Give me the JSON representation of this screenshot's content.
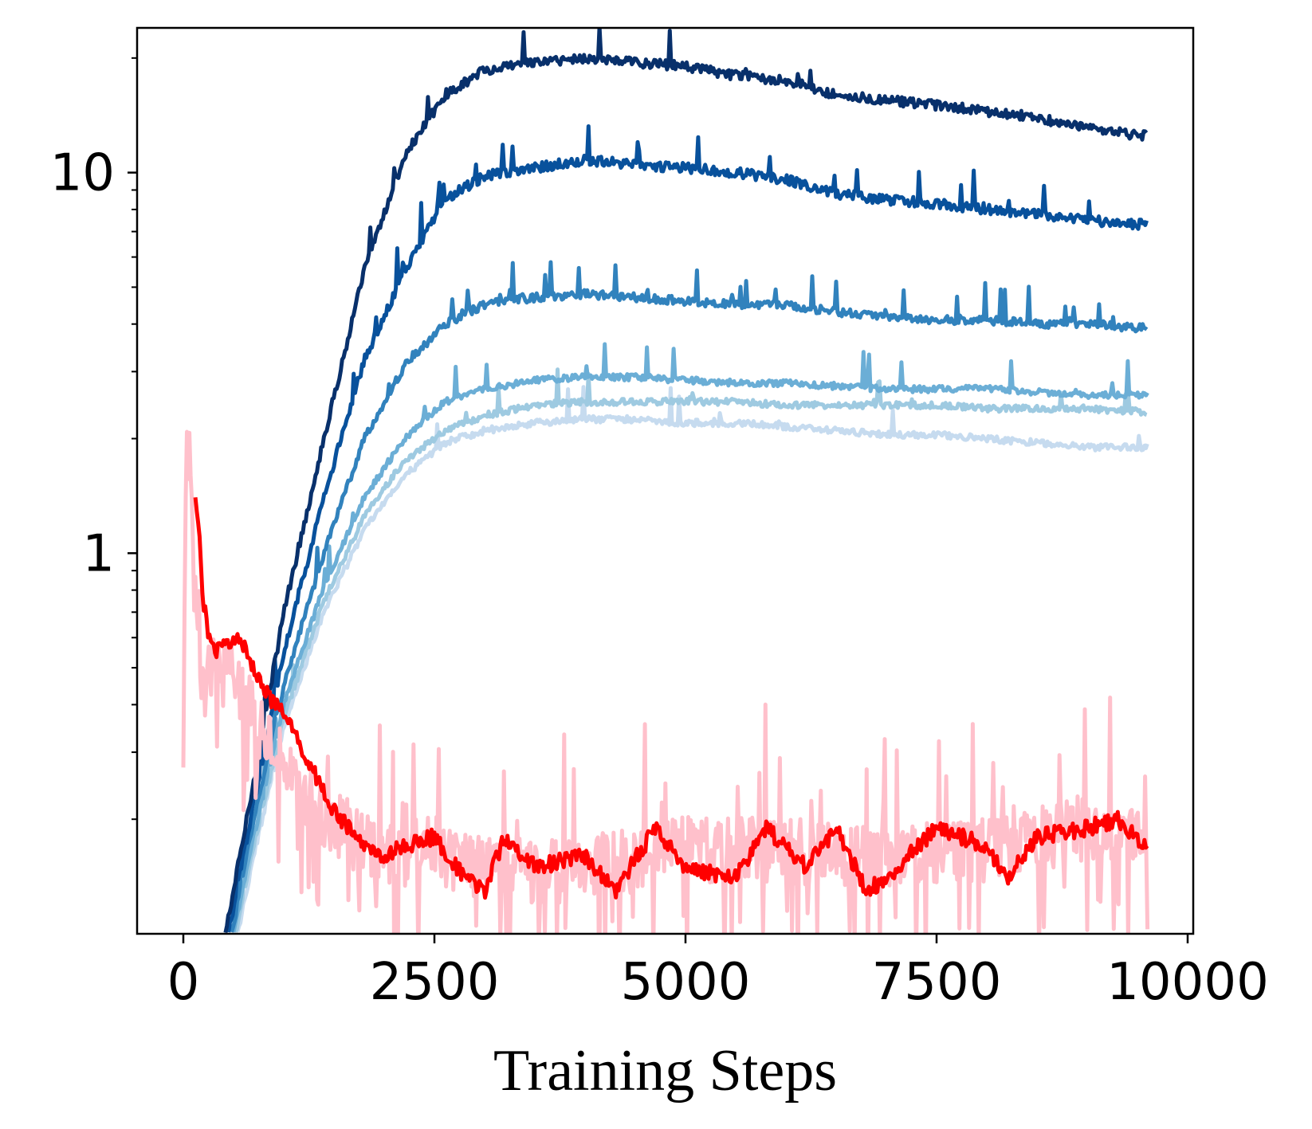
{
  "chart_data": {
    "type": "line",
    "title": "",
    "xlabel": "Training Steps",
    "ylabel": "",
    "yscale": "log",
    "xlim": [
      -450,
      10000
    ],
    "ylim": [
      0.1,
      24
    ],
    "xticks": [
      0,
      2500,
      5000,
      7500,
      10000
    ],
    "xtick_labels": [
      "0",
      "2500",
      "5000",
      "7500",
      "10000"
    ],
    "yticks": [
      1,
      10
    ],
    "ytick_labels": [
      "1",
      "10"
    ],
    "grid": false,
    "legend": "none",
    "series": [
      {
        "name": "blue-1",
        "color": "#08306b",
        "noise": 0.03,
        "spikes": 0.02,
        "x": [
          420,
          700,
          1000,
          1400,
          1800,
          2200,
          2600,
          3000,
          3500,
          4000,
          4500,
          5000,
          5500,
          6000,
          6500,
          7000,
          7500,
          8000,
          8500,
          9000,
          9600
        ],
        "y": [
          0.1,
          0.25,
          0.7,
          2.0,
          5.5,
          11,
          16,
          18.5,
          19.5,
          20,
          19.5,
          19,
          18,
          17.5,
          16,
          15.5,
          15,
          14.5,
          14,
          13,
          12.5
        ]
      },
      {
        "name": "blue-2",
        "color": "#08519c",
        "noise": 0.03,
        "spikes": 0.06,
        "x": [
          450,
          700,
          1000,
          1400,
          1800,
          2200,
          2600,
          3000,
          3500,
          4000,
          4500,
          5000,
          5500,
          6000,
          6500,
          7000,
          7500,
          8000,
          8500,
          9000,
          9600
        ],
        "y": [
          0.1,
          0.22,
          0.55,
          1.4,
          3.2,
          5.5,
          8.5,
          9.8,
          10.3,
          10.8,
          10.5,
          10.3,
          10,
          9.6,
          8.8,
          8.5,
          8.3,
          8,
          7.8,
          7.5,
          7.3
        ]
      },
      {
        "name": "blue-3",
        "color": "#3182bd",
        "noise": 0.025,
        "spikes": 0.06,
        "x": [
          480,
          700,
          1000,
          1400,
          1800,
          2200,
          2600,
          3000,
          3500,
          4000,
          4500,
          5000,
          5500,
          6000,
          6500,
          7000,
          7500,
          8000,
          8500,
          9000,
          9600
        ],
        "y": [
          0.1,
          0.2,
          0.45,
          1.0,
          2.0,
          3.1,
          4.0,
          4.5,
          4.7,
          4.8,
          4.7,
          4.6,
          4.5,
          4.5,
          4.3,
          4.2,
          4.1,
          4.1,
          4.0,
          4.0,
          3.9
        ]
      },
      {
        "name": "blue-4",
        "color": "#6baed6",
        "noise": 0.02,
        "spikes": 0.04,
        "x": [
          500,
          700,
          1000,
          1400,
          1800,
          2200,
          2600,
          3000,
          3500,
          4000,
          4500,
          5000,
          5500,
          6000,
          6500,
          7000,
          7500,
          8000,
          8500,
          9000,
          9600
        ],
        "y": [
          0.1,
          0.18,
          0.4,
          0.82,
          1.4,
          2.0,
          2.5,
          2.7,
          2.85,
          2.9,
          2.9,
          2.85,
          2.8,
          2.8,
          2.75,
          2.7,
          2.7,
          2.7,
          2.65,
          2.6,
          2.6
        ]
      },
      {
        "name": "blue-5",
        "color": "#9ecae1",
        "noise": 0.02,
        "spikes": 0.03,
        "x": [
          520,
          700,
          1000,
          1400,
          1800,
          2200,
          2600,
          3000,
          3500,
          4000,
          4500,
          5000,
          5500,
          6000,
          6500,
          7000,
          7500,
          8000,
          8500,
          9000,
          9600
        ],
        "y": [
          0.1,
          0.17,
          0.37,
          0.75,
          1.25,
          1.75,
          2.1,
          2.3,
          2.45,
          2.5,
          2.5,
          2.5,
          2.5,
          2.45,
          2.45,
          2.45,
          2.45,
          2.4,
          2.4,
          2.4,
          2.35
        ]
      },
      {
        "name": "blue-6",
        "color": "#c6dbef",
        "noise": 0.02,
        "spikes": 0.02,
        "x": [
          540,
          700,
          1000,
          1400,
          1800,
          2200,
          2600,
          3000,
          3500,
          4000,
          4500,
          5000,
          5500,
          6000,
          6500,
          7000,
          7500,
          8000,
          8500,
          9000,
          9600
        ],
        "y": [
          0.1,
          0.16,
          0.35,
          0.7,
          1.15,
          1.6,
          1.95,
          2.1,
          2.2,
          2.25,
          2.25,
          2.2,
          2.2,
          2.15,
          2.1,
          2.05,
          2.05,
          2.0,
          1.95,
          1.9,
          1.9
        ]
      },
      {
        "name": "pink-raw",
        "color": "#ffc0cb",
        "noise": 0.2,
        "spikes": 0.06,
        "x": [
          0,
          30,
          60,
          100,
          150,
          200,
          300,
          400,
          500,
          600,
          700,
          800,
          1000,
          1200,
          1500,
          2000,
          2500,
          3000,
          4000,
          5000,
          6000,
          7000,
          8000,
          9000,
          9600
        ],
        "y": [
          0.4,
          2.2,
          1.8,
          0.9,
          0.55,
          0.45,
          0.5,
          0.48,
          0.5,
          0.42,
          0.38,
          0.34,
          0.28,
          0.24,
          0.2,
          0.16,
          0.17,
          0.15,
          0.15,
          0.17,
          0.17,
          0.16,
          0.17,
          0.19,
          0.18
        ]
      },
      {
        "name": "red-smoothed",
        "color": "#ff0000",
        "noise": 0.05,
        "spikes": 0,
        "x": [
          120,
          150,
          200,
          250,
          300,
          350,
          400,
          500,
          600,
          700,
          800,
          900,
          1000,
          1200,
          1500,
          1800,
          2000,
          2200,
          2500,
          2800,
          3000,
          3200,
          3500,
          4000,
          4300,
          4700,
          5000,
          5500,
          5800,
          6200,
          6500,
          6800,
          7000,
          7500,
          8000,
          8200,
          8500,
          9000,
          9300,
          9600
        ],
        "y": [
          1.35,
          1.2,
          0.75,
          0.62,
          0.55,
          0.56,
          0.57,
          0.6,
          0.57,
          0.5,
          0.45,
          0.4,
          0.38,
          0.3,
          0.21,
          0.17,
          0.16,
          0.17,
          0.18,
          0.14,
          0.13,
          0.18,
          0.15,
          0.16,
          0.13,
          0.19,
          0.15,
          0.14,
          0.19,
          0.15,
          0.19,
          0.13,
          0.14,
          0.19,
          0.17,
          0.14,
          0.18,
          0.19,
          0.2,
          0.17
        ]
      }
    ]
  }
}
